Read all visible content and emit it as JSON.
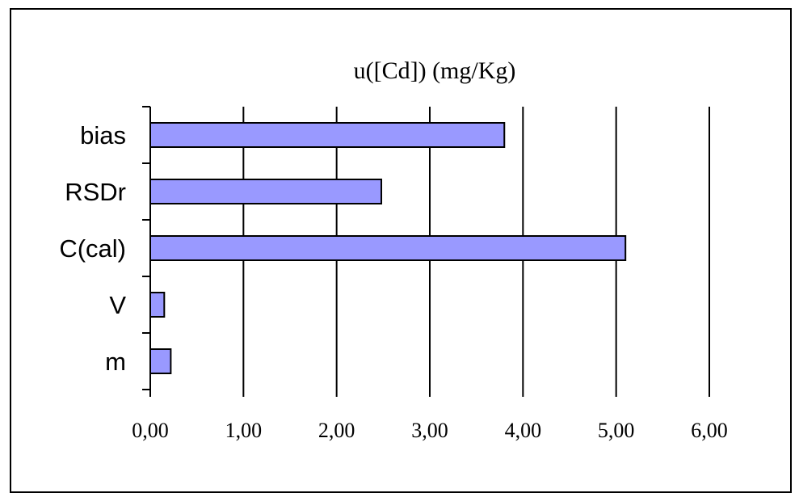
{
  "chart_data": {
    "type": "bar",
    "orientation": "horizontal",
    "title": "u([Cd])  (mg/Kg)",
    "xlabel": "",
    "ylabel": "",
    "categories": [
      "bias",
      "RSDr",
      "C(cal)",
      "V",
      "m"
    ],
    "values": [
      3.8,
      2.48,
      5.1,
      0.15,
      0.22
    ],
    "xlim": [
      0,
      6
    ],
    "xticks": [
      0,
      1,
      2,
      3,
      4,
      5,
      6
    ],
    "xtick_labels": [
      "0,00",
      "1,00",
      "2,00",
      "3,00",
      "4,00",
      "5,00",
      "6,00"
    ],
    "grid": "vertical",
    "legend": "none",
    "bar_color": "#9999ff",
    "bar_edge_color": "#000000"
  }
}
